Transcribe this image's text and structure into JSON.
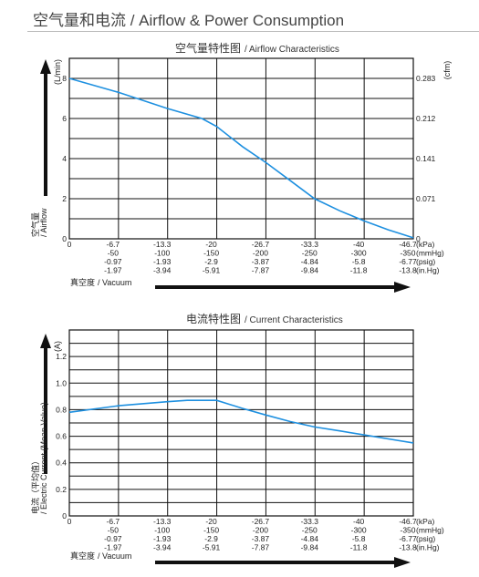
{
  "page": {
    "title": "空气量和电流 / Airflow & Power Consumption"
  },
  "chart_data": [
    {
      "type": "line",
      "title": "空气量特性图",
      "title_en": "/ Airflow Characteristics",
      "ylabel": "空气量",
      "ylabel_en": "/ Airflow",
      "yunit_left": "(L/min)",
      "yunit_right": "(cfm)",
      "xlabel": "真空度",
      "xlabel_en": "/ Vacuum",
      "ylim": [
        0,
        9
      ],
      "yticks": [
        0,
        2,
        4,
        6,
        8
      ],
      "right_ticks": [
        {
          "y": 0,
          "label": "0"
        },
        {
          "y": 2,
          "label": "0.071"
        },
        {
          "y": 4,
          "label": "0.141"
        },
        {
          "y": 6,
          "label": "0.212"
        },
        {
          "y": 8,
          "label": "0.283"
        }
      ],
      "xlim": [
        0,
        46.7
      ],
      "x_rows": [
        {
          "unit": "(kPa)",
          "labels": [
            "-6.7",
            "-13.3",
            "-20",
            "-26.7",
            "-33.3",
            "-40",
            "-46.7"
          ]
        },
        {
          "unit": "(mmHg)",
          "labels": [
            "-50",
            "-100",
            "-150",
            "-200",
            "-250",
            "-300",
            "-350"
          ]
        },
        {
          "unit": "(psig)",
          "labels": [
            "-0.97",
            "-1.93",
            "-2.9",
            "-3.87",
            "-4.84",
            "-5.8",
            "-6.77"
          ]
        },
        {
          "unit": "(in.Hg)",
          "labels": [
            "-1.97",
            "-3.94",
            "-5.91",
            "-7.87",
            "-9.84",
            "-11.8",
            "-13.8"
          ]
        }
      ],
      "x_zero_label": "0",
      "grid": true,
      "series": [
        {
          "color": "#1e90e0",
          "x": [
            0,
            6.7,
            13.3,
            18,
            20,
            23.5,
            26.7,
            30,
            33.3,
            36.7,
            40,
            43.3,
            46.7
          ],
          "y": [
            8.0,
            7.3,
            6.5,
            6.0,
            5.6,
            4.6,
            3.8,
            2.9,
            2.0,
            1.4,
            0.9,
            0.45,
            0.05
          ]
        }
      ]
    },
    {
      "type": "line",
      "title": "电流特性图",
      "title_en": "/ Current Characteristics",
      "ylabel": "电流（平均值）",
      "ylabel_en": "/ Electric Current (Mean Value)",
      "yunit_left": "(A)",
      "xlabel": "真空度",
      "xlabel_en": "/ Vacuum",
      "ylim": [
        0,
        1.4
      ],
      "yticks": [
        0,
        0.2,
        0.4,
        0.6,
        0.8,
        1.0,
        1.2
      ],
      "ytick_labels": [
        "0",
        "0.2",
        "0.4",
        "0.6",
        "0.8",
        "1.0",
        "1.2"
      ],
      "xlim": [
        0,
        46.7
      ],
      "x_rows": [
        {
          "unit": "(kPa)",
          "labels": [
            "-6.7",
            "-13.3",
            "-20",
            "-26.7",
            "-33.3",
            "-40",
            "-46.7"
          ]
        },
        {
          "unit": "(mmHg)",
          "labels": [
            "-50",
            "-100",
            "-150",
            "-200",
            "-250",
            "-300",
            "-350"
          ]
        },
        {
          "unit": "(psig)",
          "labels": [
            "-0.97",
            "-1.93",
            "-2.9",
            "-3.87",
            "-4.84",
            "-5.8",
            "-6.77"
          ]
        },
        {
          "unit": "(in.Hg)",
          "labels": [
            "-1.97",
            "-3.94",
            "-5.91",
            "-7.87",
            "-9.84",
            "-11.8",
            "-13.8"
          ]
        }
      ],
      "x_zero_label": "0",
      "grid": true,
      "series": [
        {
          "color": "#1e90e0",
          "x": [
            0,
            6.7,
            13.3,
            16,
            20,
            23.5,
            26.7,
            30,
            33.3,
            36.7,
            40,
            43.3,
            46.7
          ],
          "y": [
            0.78,
            0.83,
            0.86,
            0.87,
            0.87,
            0.81,
            0.76,
            0.71,
            0.67,
            0.64,
            0.61,
            0.58,
            0.55
          ]
        }
      ]
    }
  ]
}
